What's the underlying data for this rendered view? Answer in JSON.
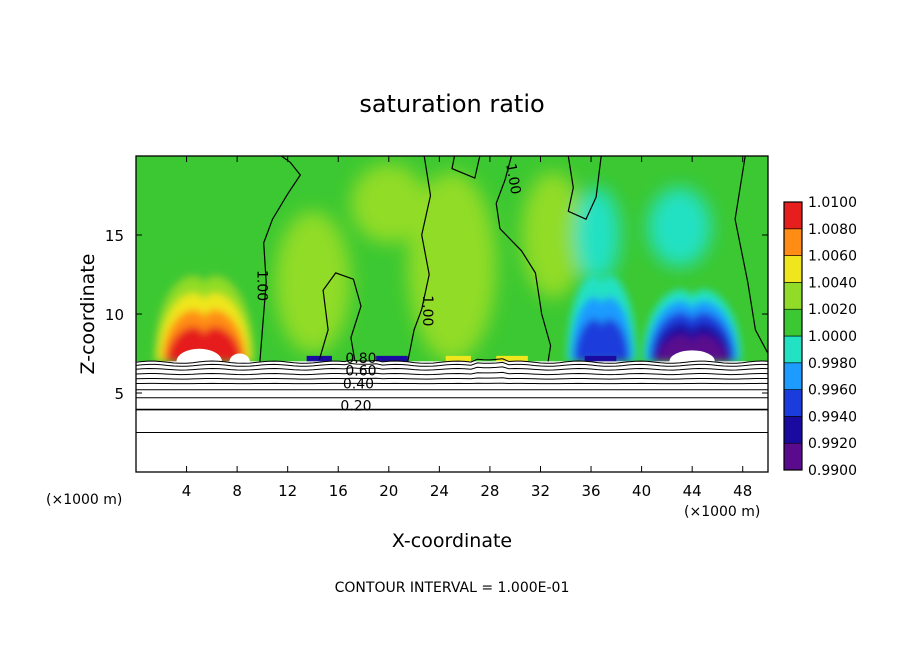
{
  "chart_data": {
    "type": "heatmap",
    "title": "saturation ratio",
    "xlabel": "X-coordinate",
    "ylabel": "Z-coordinate",
    "x_unit_left": "(×1000 m)",
    "x_unit_right": "(×1000 m)",
    "footer": "CONTOUR INTERVAL = 1.000E-01",
    "xlim": [
      0,
      50
    ],
    "ylim": [
      0,
      20
    ],
    "x_ticks": [
      4,
      8,
      12,
      16,
      20,
      24,
      28,
      32,
      36,
      40,
      44,
      48
    ],
    "x_tick_labels": [
      "4",
      "8",
      "12",
      "16",
      "20",
      "24",
      "28",
      "32",
      "36",
      "40",
      "44",
      "48"
    ],
    "y_ticks": [
      5,
      10,
      15
    ],
    "y_tick_labels": [
      "5",
      "10",
      "15"
    ],
    "colorbar": {
      "levels": [
        0.99,
        0.992,
        0.994,
        0.996,
        0.998,
        1.0,
        1.002,
        1.004,
        1.006,
        1.008,
        1.01
      ],
      "labels": [
        "0.9900",
        "0.9920",
        "0.9940",
        "0.9960",
        "0.9980",
        "1.0000",
        "1.0020",
        "1.0040",
        "1.0060",
        "1.0080",
        "1.0100"
      ],
      "colors": [
        "#5a0a8c",
        "#1a0aa0",
        "#1a3cdc",
        "#1e9bff",
        "#23e1c3",
        "#3cc832",
        "#91dc28",
        "#f0e61e",
        "#ff8c14",
        "#e61e1e",
        "#f0968c"
      ]
    },
    "contour_labels": [
      {
        "text": "1.00",
        "x": 9.6,
        "y": 11.8,
        "angle": 90
      },
      {
        "text": "1.00",
        "x": 22.7,
        "y": 10.2,
        "angle": 90
      },
      {
        "text": "1.00",
        "x": 29.5,
        "y": 18.5,
        "angle": 80
      },
      {
        "text": "0.80",
        "x": 17.8,
        "y": 6.9,
        "angle": 0
      },
      {
        "text": "0.60",
        "x": 17.8,
        "y": 6.1,
        "angle": 0
      },
      {
        "text": "0.40",
        "x": 17.6,
        "y": 5.3,
        "angle": 0
      },
      {
        "text": "0.20",
        "x": 17.4,
        "y": 3.9,
        "angle": 0
      }
    ],
    "low_contour_levels_z": [
      6.95,
      6.75,
      6.5,
      6.2,
      5.9,
      5.6,
      5.2,
      4.7,
      3.95,
      2.5
    ],
    "cloud_base_z": 7.0,
    "features": [
      {
        "kind": "supersaturated",
        "x_range": [
          1.6,
          9.2
        ],
        "peak_z": 11.8,
        "value": 1.0095
      },
      {
        "kind": "subsaturated",
        "x_range": [
          34.5,
          39.2
        ],
        "peak_z": 10.8,
        "value": 0.9935
      },
      {
        "kind": "subsaturated",
        "x_range": [
          40.5,
          47.5
        ],
        "peak_z": 9.9,
        "value": 0.991
      }
    ]
  }
}
